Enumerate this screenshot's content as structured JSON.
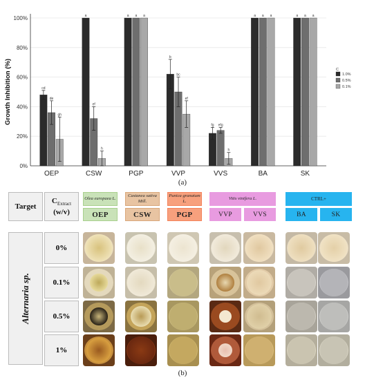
{
  "panel_a": {
    "caption": "(a)",
    "chart_data": {
      "type": "bar",
      "ylabel": "Growth Inhibition (%)",
      "xlabel": "",
      "ylim": [
        0,
        100
      ],
      "yticks": [
        "0%",
        "20%",
        "40%",
        "60%",
        "80%",
        "100%"
      ],
      "categories": [
        "OEP",
        "CSW",
        "PGP",
        "VVP",
        "VVS",
        "BA",
        "SK"
      ],
      "legend_title": "C",
      "legend_position": "right",
      "grid": true,
      "series": [
        {
          "name": "1.0%",
          "color": "#2b2b2b",
          "values": [
            48,
            100,
            100,
            62,
            22,
            100,
            100
          ],
          "errors": [
            3,
            0,
            0,
            10,
            4,
            0,
            0
          ],
          "letters": [
            "cd",
            "a",
            "a",
            "b",
            "fg",
            "a",
            "a"
          ]
        },
        {
          "name": "0.5%",
          "color": "#6e6e6e",
          "values": [
            36,
            32,
            100,
            50,
            24,
            100,
            100
          ],
          "errors": [
            8,
            8,
            0,
            10,
            2,
            0,
            0
          ],
          "letters": [
            "de",
            "ef",
            "a",
            "bc",
            "efg",
            "a",
            "a"
          ]
        },
        {
          "name": "0.1%",
          "color": "#a8a8a8",
          "values": [
            18,
            5,
            100,
            35,
            5,
            100,
            100
          ],
          "errors": [
            15,
            5,
            0,
            9,
            4,
            0,
            0
          ],
          "letters": [
            "gh",
            "h",
            "a",
            "ef",
            "h",
            "a",
            "a"
          ]
        }
      ]
    }
  },
  "panel_b": {
    "caption": "(b)",
    "target_label": "Target",
    "conc_label_main": "C",
    "conc_label_sub": "Extract",
    "conc_label_unit": "(w/v)",
    "organism": "Alternaria sp.",
    "concentrations": [
      "0%",
      "0.1%",
      "0.5%",
      "1%"
    ],
    "groups": [
      {
        "plant": "Olea europaea L.",
        "codes": [
          "OEP"
        ],
        "color": "#a8d08d",
        "chip": "#c9e2b8"
      },
      {
        "plant": "Castanea sativa Mill.",
        "codes": [
          "CSW"
        ],
        "color": "#d9a77a",
        "chip": "#e8c4a2"
      },
      {
        "plant": "Punica granatum L.",
        "codes": [
          "PGP"
        ],
        "color": "#f4825a",
        "chip": "#f7a07d"
      },
      {
        "plant": "Vitis vinifera L.",
        "codes": [
          "VVP",
          "VVS"
        ],
        "color": "#e89be0",
        "chip": "#e89be0"
      },
      {
        "plant": "CTRL+",
        "codes": [
          "BA",
          "SK"
        ],
        "color": "#27b4ef",
        "chip": "#27b4ef"
      }
    ],
    "plates": {
      "OEP": [
        {
          "bg": "#c7b59a",
          "rim": "#e8dcc0",
          "colony": "#efe2b8",
          "core": "#d8c27d",
          "size": 0.85
        },
        {
          "bg": "#bfb296",
          "rim": "#e4d9bd",
          "colony": "#e6d99a",
          "core": "#bda95a",
          "size": 0.55
        },
        {
          "bg": "#7d6a45",
          "rim": "#b59a5c",
          "colony": "#2a2318",
          "core": "#c7b47a",
          "size": 0.55
        },
        {
          "bg": "#6b3f1a",
          "rim": "#c7903e",
          "colony": "#d9a040",
          "core": "#9a5a20",
          "size": 0.8
        }
      ],
      "CSW": [
        {
          "bg": "#c8c3b0",
          "rim": "#eae5d2",
          "colony": "#f3efe2",
          "core": "#e8e0c8",
          "size": 0.85
        },
        {
          "bg": "#c6bea9",
          "rim": "#e7dfc8",
          "colony": "#f0e9d8",
          "core": "#e3d9bf",
          "size": 0.85
        },
        {
          "bg": "#8a7340",
          "rim": "#c4a45a",
          "colony": "#e8dcb0",
          "core": "#b89a55",
          "size": 0.65
        },
        {
          "bg": "#4a1e0c",
          "rim": "#8a3a14",
          "colony": "#6a2810",
          "core": "#8a3a14",
          "size": 0.85
        }
      ],
      "PGP": [
        {
          "bg": "#cfc7b3",
          "rim": "#ece4d0",
          "colony": "#f4efe2",
          "core": "#ece4d0",
          "size": 0.85
        },
        {
          "bg": "#b3a77f",
          "rim": "#d4c89c",
          "colony": "#c9bd8a",
          "core": "#c9bd8a",
          "size": 0.85
        },
        {
          "bg": "#a89760",
          "rim": "#cfbf84",
          "colony": "#bfae70",
          "core": "#bfae70",
          "size": 0.85
        },
        {
          "bg": "#a88f50",
          "rim": "#d0b870",
          "colony": "#c4a860",
          "core": "#c4a860",
          "size": 0.85
        }
      ],
      "VVP": [
        {
          "bg": "#c7bfae",
          "rim": "#e8e1d0",
          "colony": "#f1eadb",
          "core": "#e2d7bd",
          "size": 0.85
        },
        {
          "bg": "#b8a27a",
          "rim": "#d8c39a",
          "colony": "#b08040",
          "core": "#e8d8b0",
          "size": 0.55
        },
        {
          "bg": "#5a2a14",
          "rim": "#9a4a20",
          "colony": "#f4e8d0",
          "core": "#f4e8d0",
          "size": 0.4
        },
        {
          "bg": "#6a2814",
          "rim": "#b05a3a",
          "colony": "#f0d8c8",
          "core": "#e8c0b0",
          "size": 0.45
        }
      ],
      "VVS": [
        {
          "bg": "#c9b9a0",
          "rim": "#e9dac0",
          "colony": "#f0dfc0",
          "core": "#e0c8a0",
          "size": 0.85
        },
        {
          "bg": "#c2ac8a",
          "rim": "#e2cba8",
          "colony": "#ecdab8",
          "core": "#e0c8a0",
          "size": 0.8
        },
        {
          "bg": "#b3a07a",
          "rim": "#d3c09a",
          "colony": "#e0d0a8",
          "core": "#d0bc90",
          "size": 0.8
        },
        {
          "bg": "#b89a5a",
          "rim": "#d9bc7a",
          "colony": "#cfb070",
          "core": "#cfb070",
          "size": 0.85
        }
      ],
      "BA": [
        {
          "bg": "#c4b9a5",
          "rim": "#e4d9c5",
          "colony": "#eedfc0",
          "core": "#e0caa0",
          "size": 0.85
        },
        {
          "bg": "#b0aca5",
          "rim": "#d8d4cc",
          "colony": "#c8c4bc",
          "core": "#c8c4bc",
          "size": 0.85
        },
        {
          "bg": "#a8a49a",
          "rim": "#d0ccc2",
          "colony": "#bcb8ae",
          "core": "#bcb8ae",
          "size": 0.85
        },
        {
          "bg": "#b4ae9c",
          "rim": "#dad4c0",
          "colony": "#cac4b0",
          "core": "#cac4b0",
          "size": 0.85
        }
      ],
      "SK": [
        {
          "bg": "#c8bca6",
          "rim": "#e8dcc6",
          "colony": "#f0e2c4",
          "core": "#e4d0a8",
          "size": 0.85
        },
        {
          "bg": "#9a9a9e",
          "rim": "#c4c4c8",
          "colony": "#b4b4b8",
          "core": "#b4b4b8",
          "size": 0.85
        },
        {
          "bg": "#a6a6a4",
          "rim": "#cfcfcc",
          "colony": "#bebebb",
          "core": "#bebebb",
          "size": 0.85
        },
        {
          "bg": "#b2ae9e",
          "rim": "#d8d4c4",
          "colony": "#c8c4b4",
          "core": "#c8c4b4",
          "size": 0.85
        }
      ]
    }
  }
}
